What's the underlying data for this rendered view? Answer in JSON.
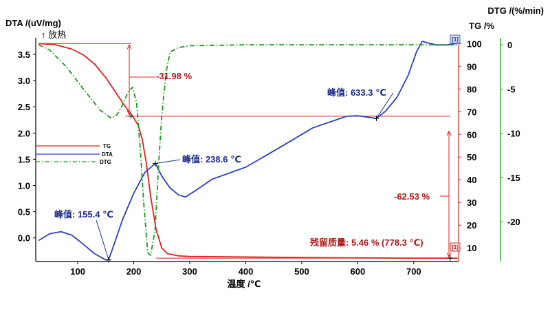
{
  "colors": {
    "tg": "#e02020",
    "dta": "#2a3fc0",
    "dtg": "#169a16",
    "axis": "#000000",
    "annot_dark_red": "#b01818",
    "annot_dark_blue": "#1a2a8a"
  },
  "labels": {
    "dta_axis": "DTA /(uV/mg)",
    "exo": "↑ 放热",
    "dtg_axis": "DTG /(%/min)",
    "tg_axis": "TG /%",
    "x_axis": "温度 /℃",
    "marker_top": "[1]",
    "marker_bottom": "[1]"
  },
  "legend": [
    {
      "name": "TG",
      "series": "tg",
      "style": "solid"
    },
    {
      "name": "DTA",
      "series": "dta",
      "style": "solid"
    },
    {
      "name": "DTG",
      "series": "dtg",
      "style": "dashdot"
    }
  ],
  "annotations": {
    "tg_step1": "-31.98 %",
    "tg_step2": "-62.53 %",
    "dta_peak1": "峰值: 155.4 ℃",
    "dta_peak2": "峰值: 238.6 ℃",
    "dta_peak3": "峰值: 633.3 ℃",
    "residual": "残留质量: 5.46 % (778.3 ℃)"
  },
  "chart_data": {
    "type": "line",
    "x_ticks": [
      100,
      200,
      300,
      400,
      500,
      600,
      700
    ],
    "xlim": [
      25,
      780
    ],
    "axes": {
      "dta": {
        "ylim": [
          -0.45,
          3.75
        ],
        "ticks": [
          -0.0,
          0.5,
          1.0,
          1.5,
          2.0,
          2.5,
          3.0,
          3.5
        ],
        "tick_labels": [
          "0.0",
          "0.5",
          "1.0",
          "1.5",
          "2.0",
          "2.5",
          "3.0",
          "3.5"
        ]
      },
      "tg": {
        "ylim": [
          4,
          101
        ],
        "ticks": [
          10,
          20,
          30,
          40,
          50,
          60,
          70,
          80,
          90,
          100
        ]
      },
      "dtg": {
        "ylim": [
          -24.5,
          0.4
        ],
        "ticks": [
          0,
          -5,
          -10,
          -15,
          -20
        ]
      }
    },
    "series": [
      {
        "name": "TG",
        "key": "tg",
        "axis": "tg",
        "x": [
          30,
          60,
          90,
          110,
          130,
          150,
          165,
          180,
          190,
          198,
          208,
          215,
          222,
          230,
          240,
          250,
          260,
          280,
          300,
          400,
          500,
          600,
          700,
          778
        ],
        "values": [
          100,
          99.5,
          97.5,
          95,
          91,
          85,
          79.5,
          74,
          70.5,
          68,
          64,
          58,
          48,
          33,
          18,
          10,
          7.5,
          6.5,
          6.2,
          6,
          5.8,
          5.6,
          5.5,
          5.46
        ]
      },
      {
        "name": "DTA",
        "key": "dta",
        "axis": "dta",
        "x": [
          30,
          50,
          70,
          90,
          110,
          130,
          150,
          155,
          165,
          180,
          200,
          220,
          238.6,
          250,
          265,
          280,
          292,
          310,
          340,
          400,
          460,
          520,
          580,
          600,
          620,
          633.3,
          650,
          670,
          690,
          705,
          715,
          725,
          740,
          760,
          778
        ],
        "values": [
          -0.05,
          0.08,
          0.12,
          0.05,
          -0.12,
          -0.3,
          -0.42,
          -0.42,
          -0.12,
          0.35,
          0.85,
          1.25,
          1.42,
          1.18,
          0.95,
          0.82,
          0.78,
          0.9,
          1.12,
          1.35,
          1.72,
          2.1,
          2.32,
          2.33,
          2.3,
          2.28,
          2.42,
          2.68,
          3.1,
          3.55,
          3.75,
          3.72,
          3.68,
          3.68,
          3.71
        ]
      },
      {
        "name": "DTG",
        "key": "dtg",
        "axis": "dtg",
        "x": [
          30,
          50,
          80,
          110,
          140,
          160,
          170,
          180,
          190,
          198,
          205,
          212,
          218,
          225,
          230,
          238,
          245,
          250,
          258,
          265,
          280,
          300,
          400,
          500,
          600,
          700,
          778
        ],
        "values": [
          0,
          -0.6,
          -2.5,
          -5,
          -7.4,
          -8.3,
          -7.9,
          -6.8,
          -5.3,
          -4.8,
          -6.5,
          -12,
          -18,
          -23.5,
          -23.8,
          -21,
          -13,
          -8,
          -3,
          -0.8,
          -0.3,
          -0.1,
          0,
          0,
          0,
          0,
          0
        ]
      }
    ]
  }
}
